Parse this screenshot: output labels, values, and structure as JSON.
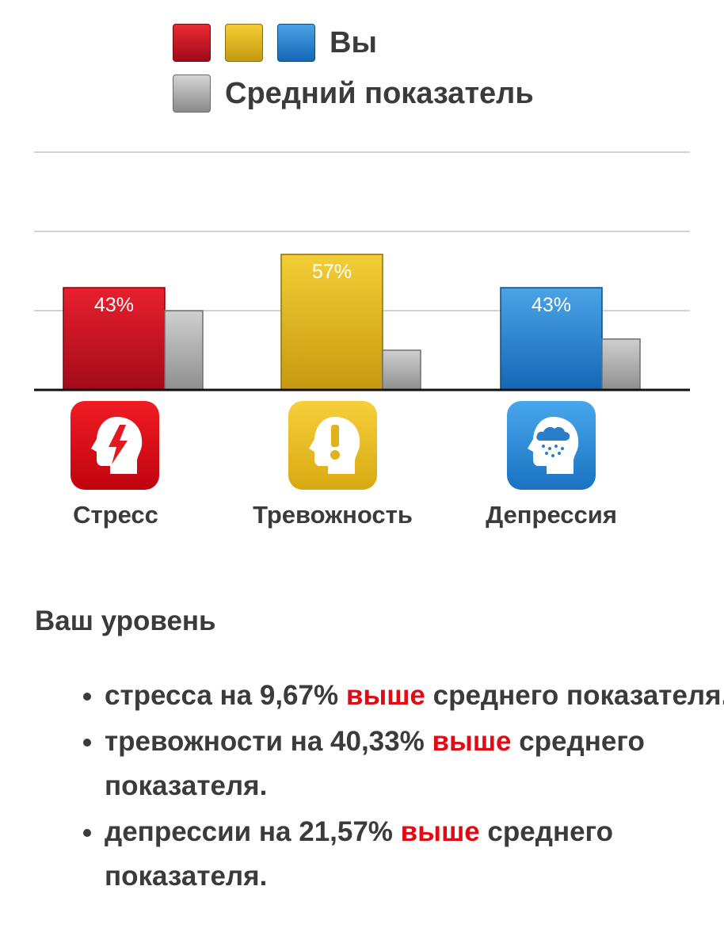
{
  "legend": {
    "you_label": "Вы",
    "average_label": "Средний показатель",
    "you_colors": [
      "#d81323",
      "#e5b623",
      "#2a86d6"
    ],
    "average_color": "#a8a8a8"
  },
  "chart_data": {
    "type": "bar",
    "categories": [
      "Стресс",
      "Тревожность",
      "Депрессия"
    ],
    "series": [
      {
        "name": "Вы",
        "values": [
          43,
          57,
          43
        ],
        "labels": [
          "43%",
          "57%",
          "43%"
        ],
        "colors": [
          "#d81323",
          "#e5b623",
          "#2a86d6"
        ]
      },
      {
        "name": "Средний показатель",
        "values": [
          33.3,
          16.7,
          21.4
        ],
        "color": "#a8a8a8"
      }
    ],
    "ylim": [
      0,
      100
    ],
    "grid": true,
    "legend_position": "top"
  },
  "icons": [
    "stress-head-lightning-icon",
    "anxiety-head-exclamation-icon",
    "depression-head-raincloud-icon"
  ],
  "summary": {
    "title": "Ваш уровень",
    "items": [
      {
        "before": "стресса на 9,67% ",
        "highlight": "выше",
        "after": " среднего показателя."
      },
      {
        "before": "тревожности на 40,33% ",
        "highlight": "выше",
        "after": " среднего показателя."
      },
      {
        "before": "депрессии на 21,57% ",
        "highlight": "выше",
        "after": " среднего показателя."
      }
    ],
    "highlight_color": "#e00b15"
  }
}
